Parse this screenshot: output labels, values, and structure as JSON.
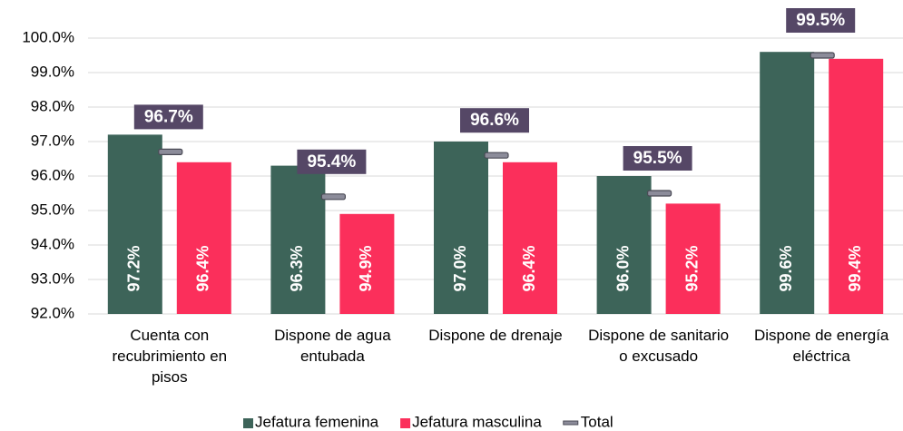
{
  "chart_data": {
    "type": "bar",
    "categories": [
      "Cuenta con recubrimiento en pisos",
      "Dispone de agua entubada",
      "Dispone de drenaje",
      "Dispone de sanitario o excusado",
      "Dispone de energía eléctrica"
    ],
    "series": [
      {
        "name": "Jefatura femenina",
        "color": "#3d6459",
        "values": [
          97.2,
          96.3,
          97.0,
          96.0,
          99.6
        ],
        "value_labels": [
          "97.2%",
          "96.3%",
          "97.0%",
          "96.0%",
          "99.6%"
        ]
      },
      {
        "name": "Jefatura masculina",
        "color": "#fb2f5b",
        "values": [
          96.4,
          94.9,
          96.4,
          95.2,
          99.4
        ],
        "value_labels": [
          "96.4%",
          "94.9%",
          "96.4%",
          "95.2%",
          "99.4%"
        ]
      },
      {
        "name": "Total",
        "type": "marker",
        "color": "#8c8c9a",
        "values": [
          96.7,
          95.4,
          96.6,
          95.5,
          99.5
        ],
        "value_labels": [
          "96.7%",
          "95.4%",
          "96.6%",
          "95.5%",
          "99.5%"
        ]
      }
    ],
    "ylim": [
      92,
      100
    ],
    "yticks": [
      {
        "value": 92,
        "label": "92.0%"
      },
      {
        "value": 93,
        "label": "93.0%"
      },
      {
        "value": 94,
        "label": "94.0%"
      },
      {
        "value": 95,
        "label": "95.0%"
      },
      {
        "value": 96,
        "label": "96.0%"
      },
      {
        "value": 97,
        "label": "97.0%"
      },
      {
        "value": 98,
        "label": "98.0%"
      },
      {
        "value": 99,
        "label": "99.0%"
      },
      {
        "value": 100,
        "label": "100.0%"
      }
    ],
    "grid": true,
    "legend": "bottom"
  }
}
